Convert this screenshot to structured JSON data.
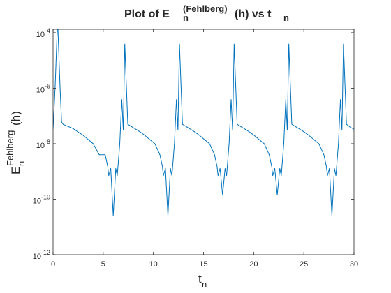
{
  "chart_data": {
    "type": "line",
    "title": [
      "Plot of E",
      "n",
      "(Fehlberg)",
      " (h) vs t",
      "n"
    ],
    "xlabel": [
      "t",
      "n"
    ],
    "ylabel": [
      "E",
      "n",
      "Fehlberg",
      "(h)"
    ],
    "log_y": true,
    "xlim": [
      0,
      30
    ],
    "ylim": [
      1e-12,
      0.000133
    ],
    "xticks": [
      0,
      5,
      10,
      15,
      20,
      25,
      30
    ],
    "yticks": [
      {
        "value": 1e-12,
        "label": "10^-12"
      },
      {
        "value": 1e-10,
        "label": "10^-10"
      },
      {
        "value": 1e-08,
        "label": "10^-8"
      },
      {
        "value": 1e-06,
        "label": "10^-6"
      },
      {
        "value": 0.0001,
        "label": "10^-4"
      }
    ],
    "series": [
      {
        "color": "#0072bd",
        "x": [
          0,
          0.2,
          0.45,
          0.7,
          0.85,
          1.0,
          2,
          3,
          4,
          4.6,
          5.2,
          5.45,
          5.55,
          5.75,
          6.0,
          6.25,
          6.4,
          6.65,
          6.85,
          7.0,
          7.15,
          7.45,
          8.15,
          8.65,
          9.15,
          9.65,
          10.15,
          10.65,
          10.9,
          11.0,
          11.2,
          11.45,
          11.7,
          11.85,
          12.1,
          12.3,
          12.45,
          12.6,
          12.9,
          13.6,
          14.1,
          14.6,
          15.1,
          15.6,
          16.1,
          16.35,
          16.45,
          16.65,
          16.9,
          17.15,
          17.3,
          17.55,
          17.75,
          17.9,
          18.05,
          18.35,
          19.05,
          19.55,
          20.05,
          20.55,
          21.05,
          21.55,
          21.8,
          21.9,
          22.1,
          22.35,
          22.6,
          22.75,
          23.0,
          23.2,
          23.35,
          23.5,
          23.8,
          24.5,
          25.0,
          25.5,
          26.0,
          26.5,
          27.0,
          27.25,
          27.35,
          27.55,
          27.8,
          28.05,
          28.2,
          28.45,
          28.65,
          28.8,
          28.95,
          29.25,
          29.6,
          30
        ],
        "values": [
          3.3e-08,
          1e-06,
          0.0003,
          1e-06,
          6e-08,
          5e-08,
          3.5e-08,
          2e-08,
          1e-08,
          4e-09,
          4e-09,
          1.5e-09,
          7e-10,
          1.3e-09,
          2.5e-11,
          1.3e-09,
          7e-10,
          1e-08,
          4e-07,
          3e-08,
          4e-05,
          5e-08,
          3.5e-08,
          2.7e-08,
          2e-08,
          1.4e-08,
          1e-08,
          4e-09,
          1.5e-09,
          7e-10,
          1.3e-09,
          2.5e-11,
          1.3e-09,
          7e-10,
          1e-08,
          4e-07,
          3e-08,
          4e-05,
          5e-08,
          3.5e-08,
          2.7e-08,
          2e-08,
          1.4e-08,
          1e-08,
          4e-09,
          1.5e-09,
          7e-10,
          1.3e-09,
          1.4e-10,
          1.3e-09,
          7e-10,
          1e-08,
          4e-07,
          3e-08,
          4e-05,
          5e-08,
          3.5e-08,
          2.7e-08,
          2e-08,
          1.4e-08,
          1e-08,
          4e-09,
          1.5e-09,
          7e-10,
          1.3e-09,
          1.4e-10,
          1.3e-09,
          7e-10,
          1e-08,
          4e-07,
          3e-08,
          4e-05,
          5e-08,
          3.5e-08,
          2.7e-08,
          2e-08,
          1.4e-08,
          1e-08,
          4e-09,
          1.5e-09,
          7e-10,
          1.3e-09,
          2.5e-11,
          1.3e-09,
          7e-10,
          1e-08,
          4e-07,
          3e-08,
          4e-05,
          5e-08,
          4e-08,
          3.3e-08
        ]
      }
    ]
  }
}
